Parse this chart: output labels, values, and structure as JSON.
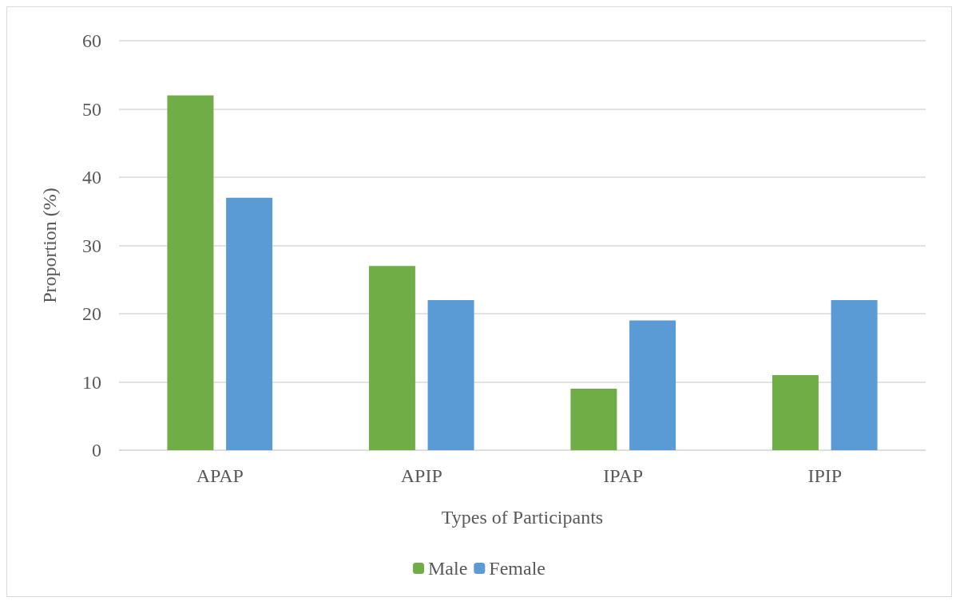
{
  "chart_data": {
    "type": "bar",
    "xlabel": "Types of Participants",
    "ylabel": "Proportion (%)",
    "categories": [
      "APAP",
      "APIP",
      "IPAP",
      "IPIP"
    ],
    "series": [
      {
        "name": "Male",
        "color": "#70ad47",
        "values": [
          52,
          27,
          9,
          11
        ]
      },
      {
        "name": "Female",
        "color": "#5b9bd5",
        "values": [
          37,
          22,
          19,
          22
        ]
      }
    ],
    "ylim": [
      0,
      60
    ],
    "yticks": [
      0,
      10,
      20,
      30,
      40,
      50,
      60
    ],
    "grid": "y",
    "legend": "bottom"
  }
}
